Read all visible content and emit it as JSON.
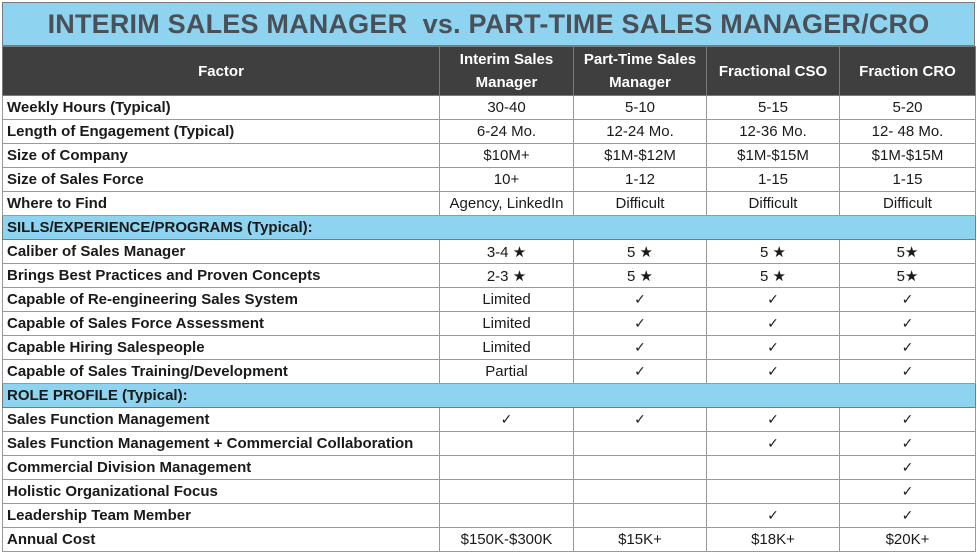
{
  "title": "INTERIM SALES MANAGER  vs. PART-TIME SALES MANAGER/CRO",
  "headers": [
    "Factor",
    "Interim Sales Manager",
    "Part-Time Sales Manager",
    "Fractional CSO",
    "Fraction CRO"
  ],
  "rows_top": [
    [
      "Weekly Hours (Typical)",
      "30-40",
      "5-10",
      "5-15",
      "5-20"
    ],
    [
      "Length of Engagement (Typical)",
      "6-24 Mo.",
      "12-24 Mo.",
      "12-36 Mo.",
      "12- 48 Mo."
    ],
    [
      "Size of Company",
      "$10M+",
      "$1M-$12M",
      "$1M-$15M",
      "$1M-$15M"
    ],
    [
      "Size of Sales Force",
      "10+",
      "1-12",
      "1-15",
      "1-15"
    ],
    [
      "Where to Find",
      "Agency, LinkedIn",
      "Difficult",
      "Difficult",
      "Difficult"
    ]
  ],
  "section1": "SILLS/EXPERIENCE/PROGRAMS (Typical):",
  "rows_skills": [
    [
      "Caliber of Sales Manager",
      "3-4 ★",
      "5 ★",
      "5 ★",
      "5★"
    ],
    [
      "Brings Best Practices and Proven Concepts",
      "2-3 ★",
      "5 ★",
      "5 ★",
      "5★"
    ],
    [
      "Capable of Re-engineering Sales System",
      "Limited",
      "✓",
      "✓",
      "✓"
    ],
    [
      "Capable of Sales Force Assessment",
      "Limited",
      "✓",
      "✓",
      "✓"
    ],
    [
      "Capable Hiring Salespeople",
      "Limited",
      "✓",
      "✓",
      "✓"
    ],
    [
      "Capable of Sales Training/Development",
      "Partial",
      "✓",
      "✓",
      "✓"
    ]
  ],
  "section2": "ROLE PROFILE (Typical):",
  "rows_role": [
    [
      "Sales Function Management",
      "✓",
      "✓",
      "✓",
      "✓"
    ],
    [
      "Sales Function Management + Commercial Collaboration",
      "",
      "",
      "✓",
      "✓"
    ],
    [
      "Commercial Division Management",
      "",
      "",
      "",
      "✓"
    ],
    [
      "Holistic Organizational Focus",
      "",
      "",
      "",
      "✓"
    ],
    [
      "Leadership Team Member",
      "",
      "",
      "✓",
      "✓"
    ],
    [
      "Annual Cost",
      "$150K-$300K",
      "$15K+",
      "$18K+",
      "$20K+"
    ]
  ]
}
